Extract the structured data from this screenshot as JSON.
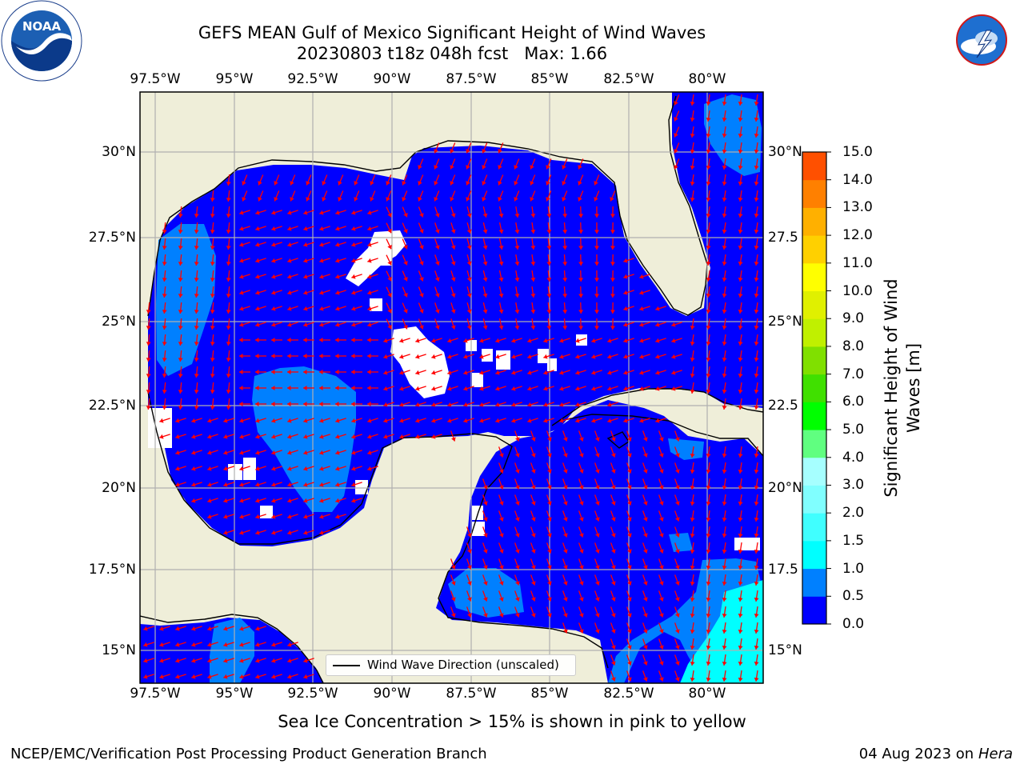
{
  "title": {
    "line1": "GEFS MEAN Gulf of Mexico Significant Height of Wind Waves",
    "line2": "20230803 t18z 048h fcst   Max: 1.66"
  },
  "axes": {
    "lon_labels": [
      "97.5°W",
      "95°W",
      "92.5°W",
      "90°W",
      "87.5°W",
      "85°W",
      "82.5°W",
      "80°W"
    ],
    "lat_labels_left": [
      "30°N",
      "27.5°N",
      "25°N",
      "22.5°N",
      "20°N",
      "17.5°N",
      "15°N"
    ],
    "lat_labels_right": [
      "30°N",
      "27.5",
      "25°N",
      "22.5",
      "20°N",
      "17.5",
      "15°N"
    ]
  },
  "colorbar": {
    "label": "Significant Height of Wind Waves [m]",
    "ticks": [
      "0.0",
      "0.5",
      "1.0",
      "1.5",
      "2.0",
      "3.0",
      "4.0",
      "5.0",
      "6.0",
      "7.0",
      "8.0",
      "9.0",
      "10.0",
      "11.0",
      "12.0",
      "13.0",
      "14.0",
      "15.0"
    ],
    "colors": [
      "#0000ff",
      "#0080ff",
      "#00ffff",
      "#40ffff",
      "#80ffff",
      "#a6ffff",
      "#60ff80",
      "#00ff00",
      "#40e000",
      "#80e000",
      "#c0f000",
      "#e0f000",
      "#ffff00",
      "#ffd000",
      "#ffb000",
      "#ff8000",
      "#ff5000",
      "#ff2000",
      "#ff0000"
    ]
  },
  "legend": {
    "label": "Wind Wave Direction (unscaled)"
  },
  "subtitle": "Sea Ice Concentration > 15% is shown in pink to yellow",
  "footer": {
    "left": "NCEP/EMC/Verification Post Processing Product Generation Branch",
    "date": "04 Aug 2023 on",
    "host": "Hera"
  },
  "logos": {
    "left": "noaa-logo",
    "right": "national-weather-service-logo",
    "left_text": "NATIONAL OCEANIC AND ATMOSPHERIC ADMINISTRATION · U.S. DEPARTMENT OF COMMERCE",
    "right_text": "NATIONAL WEATHER SERVICE",
    "left_short": "NOAA"
  },
  "colors": {
    "land": "#efeed9",
    "water_low": "#0000ff",
    "water_mid": "#0080ff",
    "water_high": "#00ffff",
    "arrow": "#ff0000",
    "grid": "#b0b0b0"
  }
}
